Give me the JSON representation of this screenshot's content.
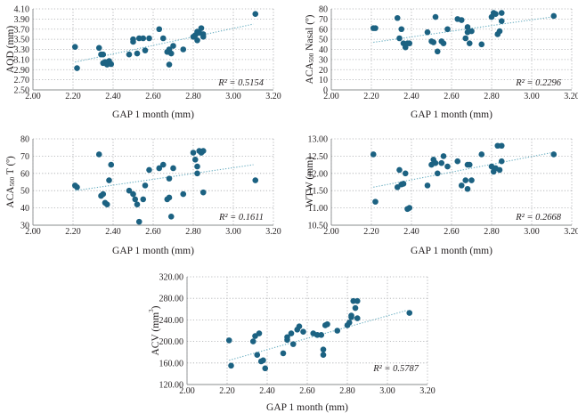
{
  "colors": {
    "point": "#1c6282",
    "trend": "#6bafc2",
    "grid": "#a7a9ac"
  },
  "chart_data": [
    {
      "type": "scatter",
      "id": "aqd",
      "xlabel": "GAP 1 month (mm)",
      "ylabel": "AQD (mm)",
      "xlim": [
        2.0,
        3.2
      ],
      "ylim": [
        2.5,
        4.1
      ],
      "xticks": [
        "2.00",
        "2.20",
        "2.40",
        "2.60",
        "2.80",
        "3.00",
        "3.20"
      ],
      "yticks": [
        "2.50",
        "2.70",
        "2.90",
        "3.10",
        "3.30",
        "3.50",
        "3.70",
        "3.90",
        "4.10"
      ],
      "r2_label": "R² = 0.5154",
      "trend": {
        "x1": 2.21,
        "y1": 3.05,
        "x2": 3.1,
        "y2": 3.8
      },
      "x": [
        2.21,
        2.22,
        2.33,
        2.34,
        2.35,
        2.35,
        2.36,
        2.37,
        2.38,
        2.39,
        2.48,
        2.5,
        2.5,
        2.52,
        2.53,
        2.55,
        2.56,
        2.58,
        2.63,
        2.65,
        2.67,
        2.68,
        2.68,
        2.69,
        2.7,
        2.75,
        2.8,
        2.81,
        2.82,
        2.82,
        2.83,
        2.84,
        2.85,
        2.85,
        3.11
      ],
      "y": [
        3.35,
        2.93,
        3.33,
        3.2,
        3.2,
        3.03,
        3.05,
        3.0,
        3.07,
        3.01,
        3.2,
        3.45,
        3.5,
        3.22,
        3.52,
        3.52,
        3.28,
        3.52,
        3.7,
        3.52,
        3.25,
        3.0,
        3.3,
        3.22,
        3.37,
        3.3,
        3.55,
        3.58,
        3.48,
        3.65,
        3.63,
        3.72,
        3.55,
        3.6,
        4.0
      ]
    },
    {
      "type": "scatter",
      "id": "aca-nasal",
      "xlabel": "GAP 1 month (mm)",
      "ylabel_main": "ACA",
      "ylabel_sub": "500",
      "ylabel_rest": " Nasal (º)",
      "xlim": [
        2.0,
        3.2
      ],
      "ylim": [
        0,
        80
      ],
      "xticks": [
        "2.00",
        "2.20",
        "2.40",
        "2.60",
        "2.80",
        "3.00",
        "3.20"
      ],
      "yticks": [
        "0",
        "10",
        "20",
        "30",
        "40",
        "50",
        "60",
        "70",
        "80"
      ],
      "r2_label": "R² = 0.2296",
      "trend": {
        "x1": 2.21,
        "y1": 47,
        "x2": 3.1,
        "y2": 72
      },
      "x": [
        2.21,
        2.22,
        2.33,
        2.34,
        2.35,
        2.36,
        2.37,
        2.38,
        2.39,
        2.48,
        2.5,
        2.51,
        2.52,
        2.53,
        2.55,
        2.56,
        2.58,
        2.63,
        2.65,
        2.67,
        2.68,
        2.68,
        2.69,
        2.7,
        2.75,
        2.8,
        2.81,
        2.82,
        2.83,
        2.84,
        2.85,
        2.85,
        3.11
      ],
      "y": [
        61,
        61,
        71,
        51,
        60,
        46,
        42,
        46,
        46,
        57,
        48,
        47,
        72,
        38,
        48,
        46,
        60,
        70,
        69,
        51,
        62,
        57,
        46,
        58,
        45,
        72,
        76,
        75,
        55,
        58,
        68,
        76,
        73
      ]
    },
    {
      "type": "scatter",
      "id": "aca-t",
      "xlabel": "GAP 1 month (mm)",
      "ylabel_main": "ACA",
      "ylabel_sub": "500",
      "ylabel_rest": " T (º)",
      "xlim": [
        2.0,
        3.2
      ],
      "ylim": [
        30,
        80
      ],
      "xticks": [
        "2.00",
        "2.20",
        "2.40",
        "2.60",
        "2.80",
        "3.00",
        "3.20"
      ],
      "yticks": [
        "30",
        "40",
        "50",
        "60",
        "70",
        "80"
      ],
      "r2_label": "R² = 0.1611",
      "trend": {
        "x1": 2.21,
        "y1": 50,
        "x2": 3.1,
        "y2": 65
      },
      "x": [
        2.21,
        2.22,
        2.33,
        2.34,
        2.35,
        2.36,
        2.37,
        2.38,
        2.39,
        2.48,
        2.5,
        2.51,
        2.52,
        2.53,
        2.55,
        2.56,
        2.58,
        2.63,
        2.65,
        2.67,
        2.68,
        2.68,
        2.69,
        2.7,
        2.75,
        2.8,
        2.81,
        2.82,
        2.82,
        2.83,
        2.84,
        2.85,
        2.85,
        3.11
      ],
      "y": [
        53,
        52,
        71,
        47,
        48,
        43,
        42,
        56,
        65,
        50,
        48,
        45,
        42,
        32,
        45,
        53,
        62,
        63,
        65,
        45,
        46,
        57,
        35,
        63,
        48,
        72,
        68,
        64,
        60,
        73,
        72,
        49,
        73,
        56
      ]
    },
    {
      "type": "scatter",
      "id": "wtw",
      "xlabel": "GAP 1 month (mm)",
      "ylabel": "WTW (mm)",
      "xlim": [
        2.0,
        3.2
      ],
      "ylim": [
        10.5,
        13.0
      ],
      "xticks": [
        "2.00",
        "2.20",
        "2.40",
        "2.60",
        "2.80",
        "3.00",
        "3.20"
      ],
      "yticks": [
        "10.50",
        "11.00",
        "11.50",
        "12.00",
        "12.50",
        "13.00"
      ],
      "r2_label": "R² = 0.2668",
      "trend": {
        "x1": 2.21,
        "y1": 11.6,
        "x2": 3.1,
        "y2": 12.6
      },
      "x": [
        2.21,
        2.22,
        2.33,
        2.34,
        2.35,
        2.36,
        2.37,
        2.38,
        2.39,
        2.48,
        2.5,
        2.51,
        2.52,
        2.53,
        2.55,
        2.56,
        2.58,
        2.63,
        2.65,
        2.67,
        2.68,
        2.68,
        2.69,
        2.7,
        2.75,
        2.8,
        2.81,
        2.82,
        2.83,
        2.84,
        2.85,
        2.85,
        3.11
      ],
      "y": [
        12.55,
        11.18,
        11.6,
        12.1,
        11.68,
        11.7,
        12.0,
        10.97,
        11.0,
        11.65,
        12.25,
        12.4,
        12.3,
        12.0,
        12.3,
        12.5,
        12.2,
        12.35,
        11.65,
        11.8,
        11.55,
        12.25,
        12.25,
        11.8,
        12.55,
        12.2,
        12.05,
        12.15,
        12.8,
        12.1,
        12.35,
        12.8,
        12.55
      ]
    },
    {
      "type": "scatter",
      "id": "acv",
      "xlabel": "GAP 1 month (mm)",
      "ylabel_main": "ACV (mm",
      "ylabel_sup": "3",
      "ylabel_rest": ")",
      "xlim": [
        2.0,
        3.2
      ],
      "ylim": [
        120,
        320
      ],
      "xticks": [
        "2.00",
        "2.20",
        "2.40",
        "2.60",
        "2.80",
        "3.00",
        "3.20"
      ],
      "yticks": [
        "120.00",
        "160.00",
        "200.00",
        "240.00",
        "280.00",
        "320.00"
      ],
      "r2_label": "R² = 0.5787",
      "trend": {
        "x1": 2.21,
        "y1": 165,
        "x2": 3.1,
        "y2": 258
      },
      "x": [
        2.21,
        2.22,
        2.33,
        2.34,
        2.35,
        2.36,
        2.37,
        2.38,
        2.39,
        2.48,
        2.5,
        2.5,
        2.52,
        2.53,
        2.55,
        2.56,
        2.58,
        2.63,
        2.65,
        2.67,
        2.68,
        2.68,
        2.69,
        2.7,
        2.75,
        2.8,
        2.81,
        2.82,
        2.82,
        2.83,
        2.84,
        2.85,
        2.85,
        3.11
      ],
      "y": [
        202,
        155,
        200,
        210,
        175,
        215,
        163,
        165,
        150,
        178,
        203,
        208,
        215,
        195,
        222,
        228,
        218,
        215,
        212,
        212,
        175,
        185,
        230,
        232,
        220,
        230,
        235,
        245,
        248,
        275,
        262,
        243,
        275,
        253
      ]
    }
  ]
}
